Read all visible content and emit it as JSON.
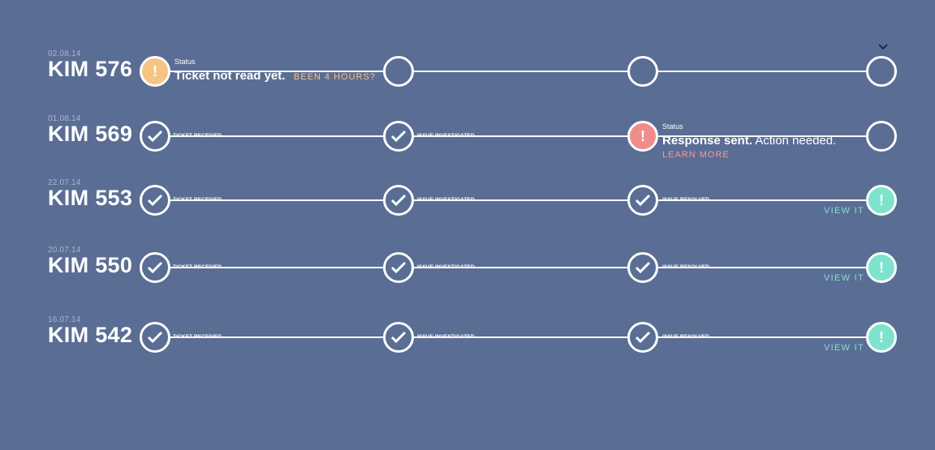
{
  "colors": {
    "background": "#5a6d94",
    "pending": "#f6c483",
    "warning": "#f08c8c",
    "resolved": "#7ee3cc",
    "line": "#ffffff"
  },
  "header": {
    "expand_icon": "chevron-down-icon"
  },
  "tickets": [
    {
      "date": "02.08.14",
      "id": "KIM 576",
      "status_caption": "Status",
      "status_bold": "Ticket not read yet.",
      "status_link": "BEEN 4 HOURS?"
    },
    {
      "date": "01.08.14",
      "id": "KIM 569",
      "step1": "TICKET RECEIVED",
      "step2": "ISSUE INVESTIGATED",
      "status_caption": "Status",
      "status_bold": "Response sent.",
      "status_rest": " Action needed.",
      "learn_more": "LEARN MORE"
    },
    {
      "date": "22.07.14",
      "id": "KIM 553",
      "step1": "TICKET RECEIVED",
      "step2": "ISSUE INVESTIGATED",
      "step3": "ISSUE RESOLVED",
      "view": "VIEW IT"
    },
    {
      "date": "20.07.14",
      "id": "KIM 550",
      "step1": "TICKET RECEIVED",
      "step2": "ISSUE INVESTIGATED",
      "step3": "ISSUE RESOLVED",
      "view": "VIEW IT"
    },
    {
      "date": "16.07.14",
      "id": "KIM 542",
      "step1": "TICKET RECEIVED",
      "step2": "ISSUE INVESTIGATED",
      "step3": "ISSUE RESOLVED",
      "view": "VIEW IT"
    }
  ],
  "icons": {
    "check": "check-icon",
    "alert": "exclamation-icon",
    "empty": "empty-circle-icon"
  },
  "alert_glyph": "!"
}
